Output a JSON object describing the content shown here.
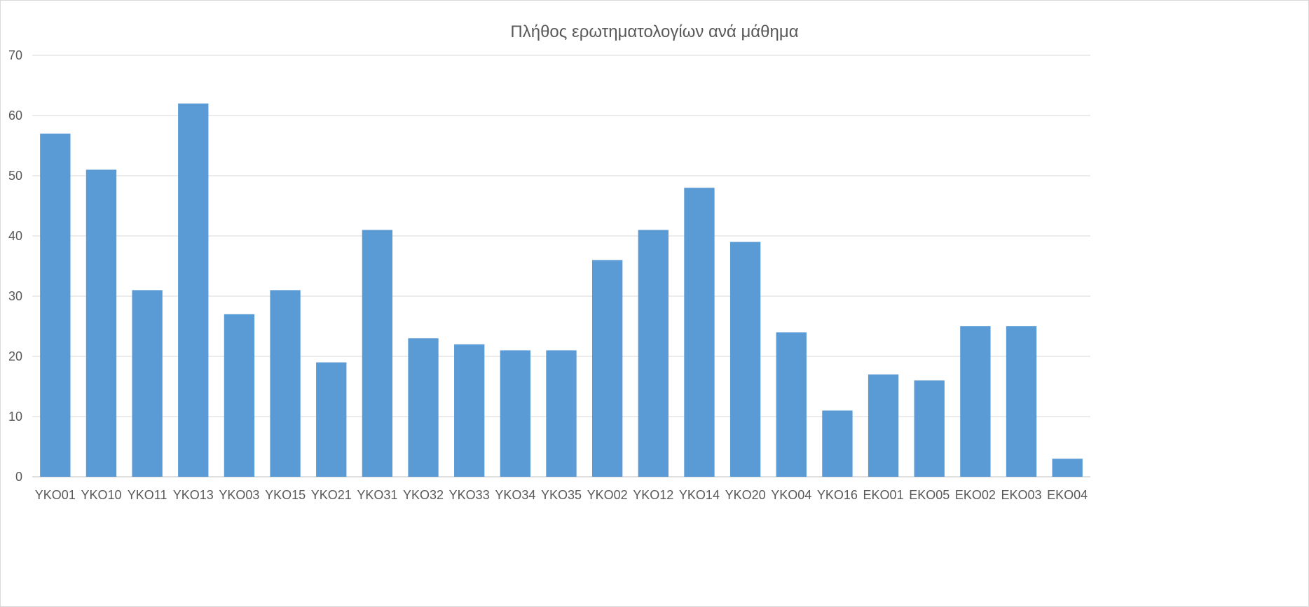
{
  "chart_data": {
    "type": "bar",
    "title": "Πλήθος ερωτηματολογίων ανά μάθημα",
    "xlabel": "",
    "ylabel": "",
    "categories": [
      "YKO01",
      "YKO10",
      "YKO11",
      "YKO13",
      "YKO03",
      "YKO15",
      "YKO21",
      "YKO31",
      "YKO32",
      "YKO33",
      "YKO34",
      "YKO35",
      "YKO02",
      "YKO12",
      "YKO14",
      "YKO20",
      "YKO04",
      "YKO16",
      "EKO01",
      "EKO05",
      "EKO02",
      "EKO03",
      "EKO04"
    ],
    "series": [
      {
        "values": [
          57,
          51,
          31,
          62,
          27,
          31,
          19,
          41,
          23,
          22,
          21,
          21,
          36,
          41,
          48,
          39,
          24,
          11,
          17,
          16,
          25,
          25,
          3
        ],
        "color": "#5B9BD5"
      }
    ],
    "ylim": [
      0,
      70
    ],
    "yticks": [
      0,
      10,
      20,
      30,
      40,
      50,
      60,
      70
    ],
    "grid": true,
    "legend": "none"
  }
}
